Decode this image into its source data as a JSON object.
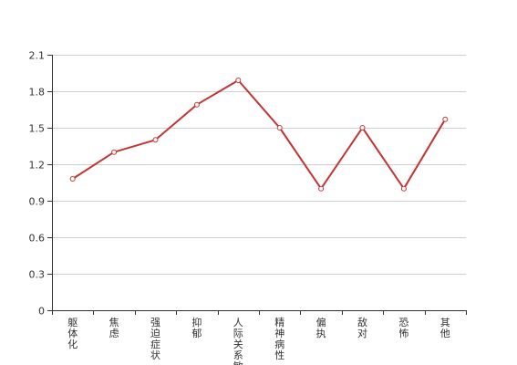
{
  "chart_data": {
    "type": "line",
    "title": "",
    "xlabel": "",
    "ylabel": "",
    "categories": [
      "躯体化",
      "焦虑",
      "强迫症状",
      "抑郁",
      "人际关系敏感",
      "精神病性",
      "偏执",
      "敌对",
      "恐怖",
      "其他"
    ],
    "series": [
      {
        "values": [
          1.08,
          1.3,
          1.4,
          1.69,
          1.89,
          1.5,
          1.0,
          1.5,
          1.0,
          1.57
        ],
        "color": "#c23531"
      }
    ],
    "ylim": [
      0,
      2.1
    ],
    "yticks": [
      "0",
      "0.3",
      "0.6",
      "0.9",
      "1.2",
      "1.5",
      "1.8",
      "2.1"
    ],
    "grid": true,
    "legend": "none"
  }
}
